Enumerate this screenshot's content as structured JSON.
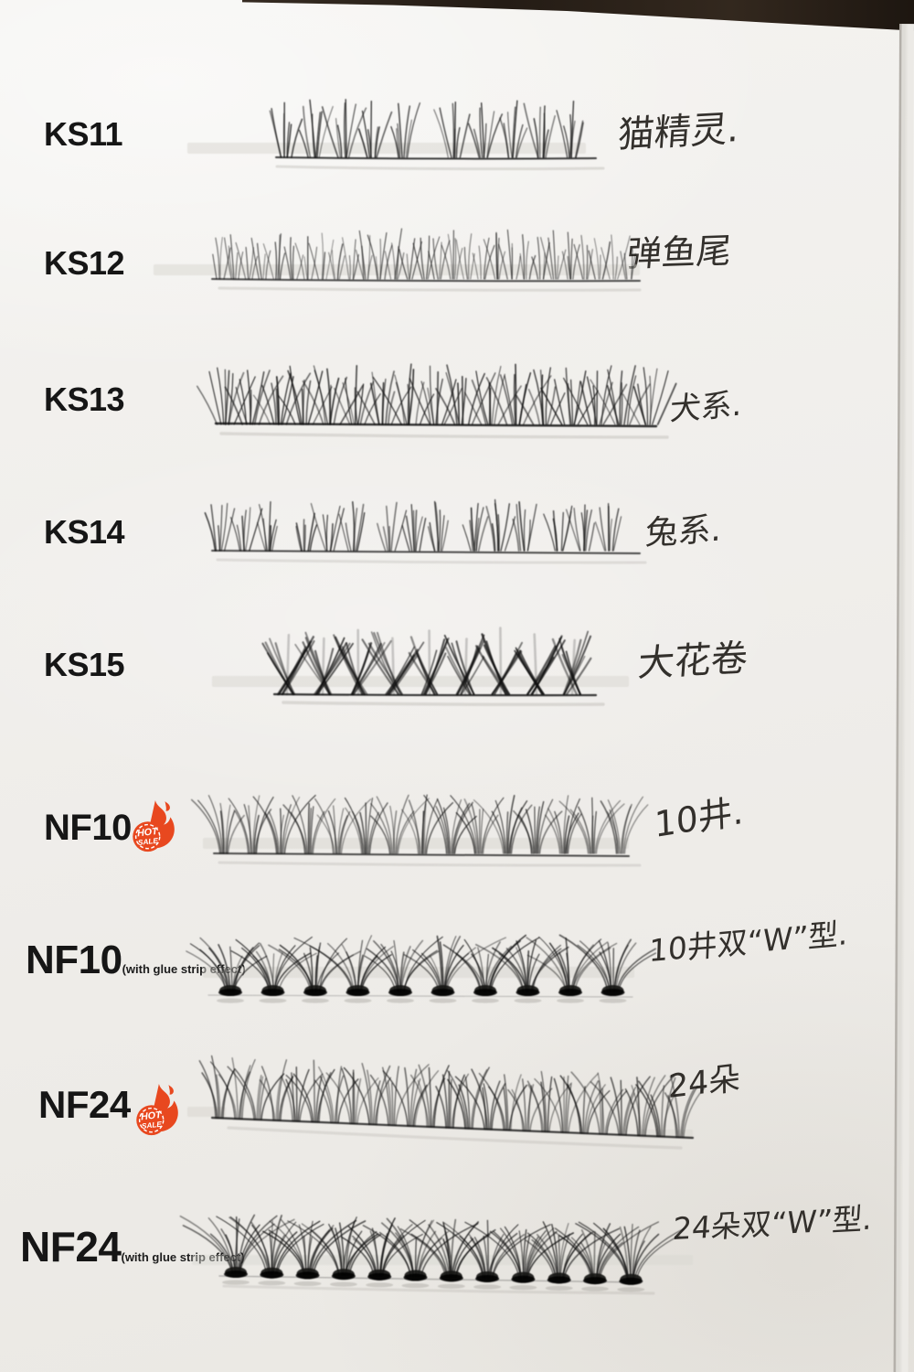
{
  "photo": {
    "description": "lash style sample sheet on paper with handwritten notes",
    "paper_color": "#f0eeea",
    "ink_color": "#33302c",
    "label_color": "#161616"
  },
  "hot_badge": {
    "line1": "HOT",
    "line2": "SALE",
    "color": "#e8481f",
    "icon": "flame-hot-sale-icon"
  },
  "rows": [
    {
      "code": "KS11",
      "note": "",
      "hot": false,
      "annotation": "猫精灵.",
      "lash_style": "two groups of sparse spiky clusters"
    },
    {
      "code": "KS12",
      "note": "",
      "hot": false,
      "annotation": "弹鱼尾",
      "lash_style": "long fine dense strip"
    },
    {
      "code": "KS13",
      "note": "",
      "hot": false,
      "annotation": "犬系.",
      "lash_style": "dense wide crossing fans"
    },
    {
      "code": "KS14",
      "note": "",
      "hot": false,
      "annotation": "兔系.",
      "lash_style": "grouped spiky clusters"
    },
    {
      "code": "KS15",
      "note": "",
      "hot": false,
      "annotation": "大花卷",
      "lash_style": "fluffy crossed X clusters"
    },
    {
      "code": "NF10",
      "note": "",
      "hot": true,
      "annotation": "10井.",
      "lash_style": "wispy dense strip"
    },
    {
      "code": "NF10",
      "note": "(with glue strip effect)",
      "hot": false,
      "annotation": "10井双“W”型.",
      "lash_style": "ten clusters with dark glue bases"
    },
    {
      "code": "NF24",
      "note": "",
      "hot": true,
      "annotation": "24朵",
      "lash_style": "long wispy crisscross strip"
    },
    {
      "code": "NF24",
      "note": "(with glue strip effect)",
      "hot": false,
      "annotation": "24朵双“W”型.",
      "lash_style": "clusters with dark glue bases"
    }
  ]
}
